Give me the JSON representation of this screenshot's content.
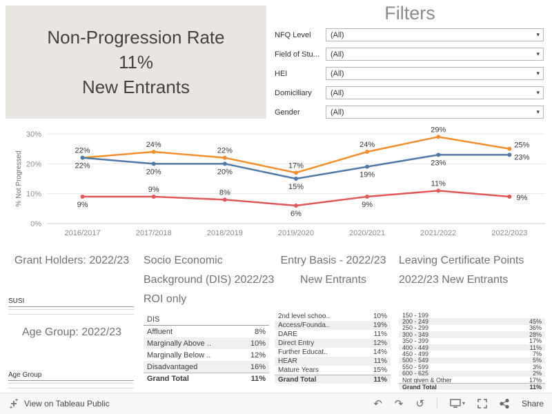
{
  "title": {
    "line1": "Non-Progression Rate",
    "line2": "11%",
    "line3": "New Entrants"
  },
  "filters": {
    "heading": "Filters",
    "caret": "▾",
    "items": [
      {
        "label": "NFQ Level",
        "value": "(All)"
      },
      {
        "label": "Field of Stu...",
        "value": "(All)"
      },
      {
        "label": "HEI",
        "value": "(All)"
      },
      {
        "label": "Domiciliary",
        "value": "(All)"
      },
      {
        "label": "Gender",
        "value": "(All)"
      }
    ]
  },
  "chart_data": {
    "type": "line",
    "title": "",
    "xlabel": "",
    "ylabel": "% Not Progressed",
    "x": [
      "2016/2017",
      "2017/2018",
      "2018/2019",
      "2019/2020",
      "2020/2021",
      "2021/2022",
      "2022/2023"
    ],
    "ylim": [
      0,
      32
    ],
    "yticks": [
      0,
      10,
      20,
      30
    ],
    "grid": true,
    "legend": "none",
    "series": [
      {
        "name": "orange",
        "color": "#f28e2b",
        "values": [
          22,
          24,
          22,
          17,
          24,
          29,
          25
        ]
      },
      {
        "name": "blue",
        "color": "#4e79a7",
        "values": [
          22,
          20,
          20,
          15,
          19,
          23,
          23
        ]
      },
      {
        "name": "red",
        "color": "#e15759",
        "values": [
          9,
          9,
          8,
          6,
          9,
          11,
          9
        ]
      }
    ]
  },
  "sections": {
    "grant_holders": {
      "heading": "Grant Holders: 2022/23",
      "table_label": "SUSI"
    },
    "age_group": {
      "heading": "Age Group: 2022/23",
      "table_label": "Age Group"
    },
    "socio": {
      "heading": "Socio Economic Background (DIS) 2022/23 ROI only",
      "table_header": "DIS",
      "rows": [
        {
          "label": "Affluent",
          "value": "8%"
        },
        {
          "label": "Marginally Above ..",
          "value": "10%"
        },
        {
          "label": "Marginally Below ..",
          "value": "12%"
        },
        {
          "label": "Disadvantaged",
          "value": "16%"
        },
        {
          "label": "Grand Total",
          "value": "11%",
          "bold": true
        }
      ]
    },
    "entry_basis": {
      "heading": "Entry Basis - 2022/23 New Entrants",
      "rows": [
        {
          "label": "2nd level schoo..",
          "value": "10%"
        },
        {
          "label": "Access/Founda..",
          "value": "19%"
        },
        {
          "label": "DARE",
          "value": "11%"
        },
        {
          "label": "Direct Entry",
          "value": "12%"
        },
        {
          "label": "Further Educat..",
          "value": "14%"
        },
        {
          "label": "HEAR",
          "value": "11%"
        },
        {
          "label": "Mature Years",
          "value": "15%"
        },
        {
          "label": "Grand Total",
          "value": "11%",
          "bold": true
        }
      ]
    },
    "leaving_cert": {
      "heading": "Leaving Certificate Points 2022/23 New Entrants",
      "rows": [
        {
          "label": "150 - 199",
          "value": ""
        },
        {
          "label": "200 - 249",
          "value": "45%"
        },
        {
          "label": "250 - 299",
          "value": "36%"
        },
        {
          "label": "300 - 349",
          "value": "28%"
        },
        {
          "label": "350 - 399",
          "value": "17%"
        },
        {
          "label": "400 - 449",
          "value": "11%"
        },
        {
          "label": "450 - 499",
          "value": "7%"
        },
        {
          "label": "500 - 549",
          "value": "5%"
        },
        {
          "label": "550 - 599",
          "value": "3%"
        },
        {
          "label": "600 - 625",
          "value": "2%"
        },
        {
          "label": "Not given & Other",
          "value": "17%"
        },
        {
          "label": "Grand Total",
          "value": "11%",
          "bold": true
        }
      ]
    }
  },
  "toolbar": {
    "view_label": "View on Tableau Public",
    "share_label": "Share",
    "undo_glyph": "↶",
    "redo_glyph": "↷",
    "reset_glyph": "↺",
    "caret_glyph": "▾"
  }
}
